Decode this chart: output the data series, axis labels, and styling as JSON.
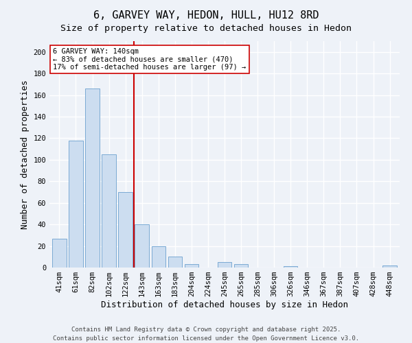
{
  "title": "6, GARVEY WAY, HEDON, HULL, HU12 8RD",
  "subtitle": "Size of property relative to detached houses in Hedon",
  "xlabel": "Distribution of detached houses by size in Hedon",
  "ylabel": "Number of detached properties",
  "bar_labels": [
    "41sqm",
    "61sqm",
    "82sqm",
    "102sqm",
    "122sqm",
    "143sqm",
    "163sqm",
    "183sqm",
    "204sqm",
    "224sqm",
    "245sqm",
    "265sqm",
    "285sqm",
    "306sqm",
    "326sqm",
    "346sqm",
    "367sqm",
    "387sqm",
    "407sqm",
    "428sqm",
    "448sqm"
  ],
  "bar_values": [
    27,
    118,
    166,
    105,
    70,
    40,
    20,
    10,
    3,
    0,
    5,
    3,
    0,
    0,
    1,
    0,
    0,
    0,
    0,
    0,
    2
  ],
  "bar_color": "#ccddf0",
  "bar_edgecolor": "#7aaad4",
  "vline_index": 5,
  "vline_color": "#cc0000",
  "annotation_title": "6 GARVEY WAY: 140sqm",
  "annotation_line1": "← 83% of detached houses are smaller (470)",
  "annotation_line2": "17% of semi-detached houses are larger (97) →",
  "ylim": [
    0,
    210
  ],
  "yticks": [
    0,
    20,
    40,
    60,
    80,
    100,
    120,
    140,
    160,
    180,
    200
  ],
  "footer1": "Contains HM Land Registry data © Crown copyright and database right 2025.",
  "footer2": "Contains public sector information licensed under the Open Government Licence v3.0.",
  "bg_color": "#eef2f8",
  "plot_bg_color": "#eef2f8",
  "grid_color": "#ffffff",
  "title_fontsize": 11,
  "subtitle_fontsize": 9.5,
  "axis_label_fontsize": 9,
  "tick_fontsize": 7.5,
  "footer_fontsize": 6.5
}
